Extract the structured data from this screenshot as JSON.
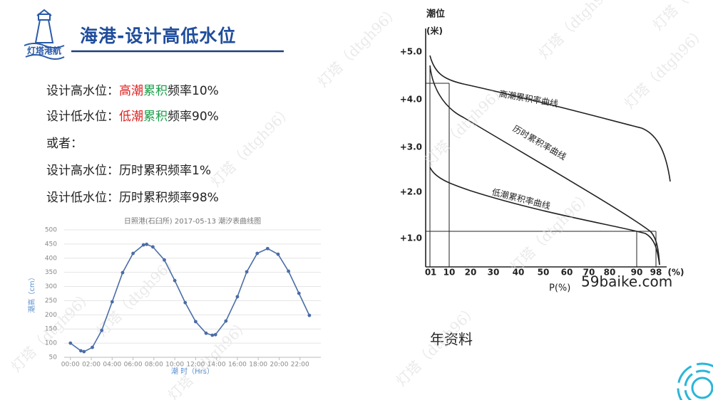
{
  "logo": {
    "text": "灯塔港航"
  },
  "header": {
    "title": "海港-设计高低水位"
  },
  "watermark": "灯塔（dtgh96）",
  "lines": [
    [
      {
        "text": "设计高水位：",
        "color": "#222222"
      },
      {
        "text": "高潮",
        "color": "#e02020"
      },
      {
        "text": "累积",
        "color": "#1aa04a"
      },
      {
        "text": "频率10%",
        "color": "#222222"
      }
    ],
    [
      {
        "text": "设计低水位：",
        "color": "#222222"
      },
      {
        "text": "低潮",
        "color": "#e02020"
      },
      {
        "text": "累积",
        "color": "#1aa04a"
      },
      {
        "text": "频率90%",
        "color": "#222222"
      }
    ],
    [
      {
        "text": "或者：",
        "color": "#222222"
      }
    ],
    [
      {
        "text": "设计高水位：历时累积频率1%",
        "color": "#222222"
      }
    ],
    [
      {
        "text": "设计低水位：历时累积频率98%",
        "color": "#222222"
      }
    ]
  ],
  "chart_data": {
    "type": "line",
    "title": "日照港(石臼所) 2017-05-13 潮汐表曲线图",
    "x_label": "潮 时（Hrs）",
    "y_label": "潮高（cm）",
    "x": [
      0,
      1,
      1.3,
      2.1,
      3,
      4,
      5,
      6,
      7,
      7.3,
      7.9,
      9,
      10,
      11,
      12,
      13,
      13.6,
      13.9,
      14.9,
      16,
      16.9,
      17.9,
      18.9,
      19.9,
      20.9,
      21.9,
      22.9
    ],
    "series": [
      {
        "name": "潮高",
        "color": "#4a6da8",
        "values": [
          100,
          73,
          70,
          85,
          145,
          246,
          349,
          417,
          447,
          449,
          440,
          394,
          321,
          243,
          176,
          135,
          128,
          130,
          178,
          264,
          352,
          417,
          434,
          414,
          354,
          276,
          198
        ]
      }
    ],
    "xlim": [
      -0.6,
      24
    ],
    "ylim": [
      50,
      500
    ],
    "xticks": [
      {
        "value": 0,
        "label": "00:00"
      },
      {
        "value": 2,
        "label": "02:00"
      },
      {
        "value": 4,
        "label": "04:00"
      },
      {
        "value": 6,
        "label": "06:00"
      },
      {
        "value": 8,
        "label": "08:00"
      },
      {
        "value": 10,
        "label": "10:00"
      },
      {
        "value": 12,
        "label": "12:00"
      },
      {
        "value": 14,
        "label": "14:00"
      },
      {
        "value": 16,
        "label": "16:00"
      },
      {
        "value": 18,
        "label": "18:00"
      },
      {
        "value": 20,
        "label": "20:00"
      },
      {
        "value": 22,
        "label": "22:00"
      }
    ],
    "yticks": [
      50,
      100,
      150,
      200,
      250,
      300,
      350,
      400,
      450,
      500
    ],
    "grid": true
  },
  "figure": {
    "y_title": "潮位",
    "y_unit": "(米)",
    "y_labels": [
      "+5.0",
      "+4.0",
      "+3.0",
      "+2.0",
      "+1.0"
    ],
    "x_labels": [
      "0",
      "1",
      "10",
      "20",
      "30",
      "40",
      "50",
      "60",
      "70",
      "80",
      "90",
      "98",
      "(%)"
    ],
    "x_title": "P(%)",
    "curve_labels": [
      "高潮累积率曲线",
      "历时累积率曲线",
      "低潮累积率曲线"
    ],
    "source": "59baike.com"
  },
  "caption": "年资料"
}
